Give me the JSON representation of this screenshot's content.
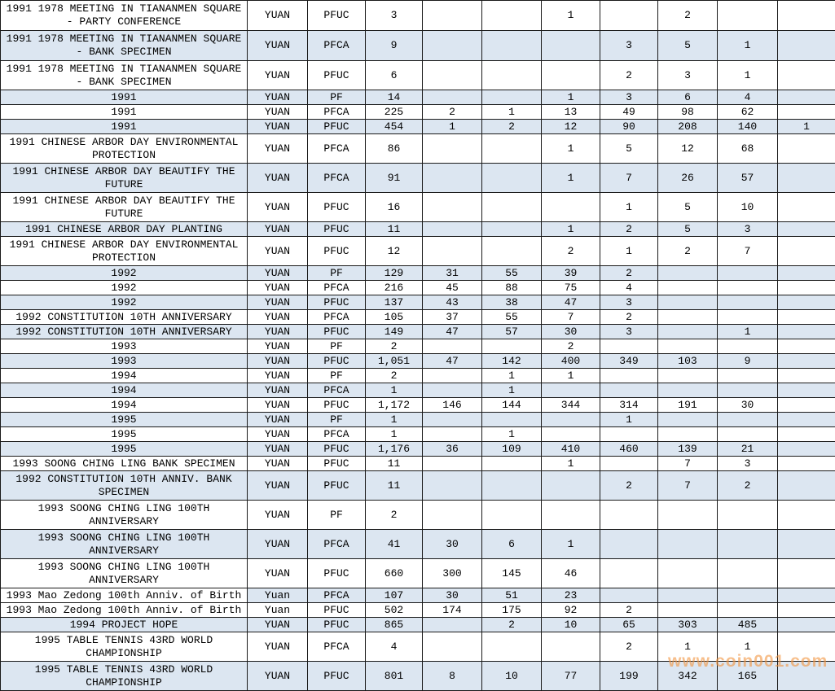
{
  "watermark": {
    "text": "www.coin001.com",
    "color": "rgba(242,148,64,0.60)"
  },
  "colors": {
    "row_blue": "#dce6f1",
    "row_white": "#ffffff",
    "border": "#1a1a1a",
    "text": "#000000",
    "watermark_orange": "#f2a440"
  },
  "table": {
    "column_roles": [
      "description",
      "currency",
      "grade",
      "count-total",
      "count-1",
      "count-2",
      "count-3",
      "count-4",
      "count-5",
      "count-6",
      "count-7"
    ],
    "rows": [
      {
        "bg": "white",
        "tall": true,
        "cells": [
          "1991 1978 MEETING IN TIANANMEN SQUARE - PARTY CONFERENCE",
          "YUAN",
          "PFUC",
          "3",
          "",
          "",
          "1",
          "",
          "2",
          "",
          ""
        ]
      },
      {
        "bg": "blue",
        "tall": true,
        "cells": [
          "1991 1978 MEETING IN TIANANMEN SQUARE - BANK SPECIMEN",
          "YUAN",
          "PFCA",
          "9",
          "",
          "",
          "",
          "3",
          "5",
          "1",
          ""
        ]
      },
      {
        "bg": "white",
        "tall": true,
        "cells": [
          "1991 1978 MEETING IN TIANANMEN SQUARE - BANK SPECIMEN",
          "YUAN",
          "PFUC",
          "6",
          "",
          "",
          "",
          "2",
          "3",
          "1",
          ""
        ]
      },
      {
        "bg": "blue",
        "tall": false,
        "cells": [
          "1991",
          "YUAN",
          "PF",
          "14",
          "",
          "",
          "1",
          "3",
          "6",
          "4",
          ""
        ]
      },
      {
        "bg": "white",
        "tall": false,
        "cells": [
          "1991",
          "YUAN",
          "PFCA",
          "225",
          "2",
          "1",
          "13",
          "49",
          "98",
          "62",
          ""
        ]
      },
      {
        "bg": "blue",
        "tall": false,
        "cells": [
          "1991",
          "YUAN",
          "PFUC",
          "454",
          "1",
          "2",
          "12",
          "90",
          "208",
          "140",
          "1"
        ]
      },
      {
        "bg": "white",
        "tall": true,
        "cells": [
          "1991 CHINESE ARBOR DAY ENVIRONMENTAL PROTECTION",
          "YUAN",
          "PFCA",
          "86",
          "",
          "",
          "1",
          "5",
          "12",
          "68",
          ""
        ]
      },
      {
        "bg": "blue",
        "tall": true,
        "cells": [
          "1991 CHINESE ARBOR DAY BEAUTIFY THE FUTURE",
          "YUAN",
          "PFCA",
          "91",
          "",
          "",
          "1",
          "7",
          "26",
          "57",
          ""
        ]
      },
      {
        "bg": "white",
        "tall": true,
        "cells": [
          "1991 CHINESE ARBOR DAY BEAUTIFY THE FUTURE",
          "YUAN",
          "PFUC",
          "16",
          "",
          "",
          "",
          "1",
          "5",
          "10",
          ""
        ]
      },
      {
        "bg": "blue",
        "tall": false,
        "cells": [
          "1991 CHINESE ARBOR DAY PLANTING",
          "YUAN",
          "PFUC",
          "11",
          "",
          "",
          "1",
          "2",
          "5",
          "3",
          ""
        ]
      },
      {
        "bg": "white",
        "tall": true,
        "cells": [
          "1991 CHINESE ARBOR DAY ENVIRONMENTAL PROTECTION",
          "YUAN",
          "PFUC",
          "12",
          "",
          "",
          "2",
          "1",
          "2",
          "7",
          ""
        ]
      },
      {
        "bg": "blue",
        "tall": false,
        "cells": [
          "1992",
          "YUAN",
          "PF",
          "129",
          "31",
          "55",
          "39",
          "2",
          "",
          "",
          ""
        ]
      },
      {
        "bg": "white",
        "tall": false,
        "cells": [
          "1992",
          "YUAN",
          "PFCA",
          "216",
          "45",
          "88",
          "75",
          "4",
          "",
          "",
          ""
        ]
      },
      {
        "bg": "blue",
        "tall": false,
        "cells": [
          "1992",
          "YUAN",
          "PFUC",
          "137",
          "43",
          "38",
          "47",
          "3",
          "",
          "",
          ""
        ]
      },
      {
        "bg": "white",
        "tall": false,
        "cells": [
          "1992 CONSTITUTION 10TH ANNIVERSARY",
          "YUAN",
          "PFCA",
          "105",
          "37",
          "55",
          "7",
          "2",
          "",
          "",
          ""
        ]
      },
      {
        "bg": "blue",
        "tall": false,
        "cells": [
          "1992 CONSTITUTION 10TH ANNIVERSARY",
          "YUAN",
          "PFUC",
          "149",
          "47",
          "57",
          "30",
          "3",
          "",
          "1",
          ""
        ]
      },
      {
        "bg": "white",
        "tall": false,
        "cells": [
          "1993",
          "YUAN",
          "PF",
          "2",
          "",
          "",
          "2",
          "",
          "",
          "",
          ""
        ]
      },
      {
        "bg": "blue",
        "tall": false,
        "cells": [
          "1993",
          "YUAN",
          "PFUC",
          "1,051",
          "47",
          "142",
          "400",
          "349",
          "103",
          "9",
          ""
        ]
      },
      {
        "bg": "white",
        "tall": false,
        "cells": [
          "1994",
          "YUAN",
          "PF",
          "2",
          "",
          "1",
          "1",
          "",
          "",
          "",
          ""
        ]
      },
      {
        "bg": "blue",
        "tall": false,
        "cells": [
          "1994",
          "YUAN",
          "PFCA",
          "1",
          "",
          "1",
          "",
          "",
          "",
          "",
          ""
        ]
      },
      {
        "bg": "white",
        "tall": false,
        "cells": [
          "1994",
          "YUAN",
          "PFUC",
          "1,172",
          "146",
          "144",
          "344",
          "314",
          "191",
          "30",
          ""
        ]
      },
      {
        "bg": "blue",
        "tall": false,
        "cells": [
          "1995",
          "YUAN",
          "PF",
          "1",
          "",
          "",
          "",
          "1",
          "",
          "",
          ""
        ]
      },
      {
        "bg": "white",
        "tall": false,
        "cells": [
          "1995",
          "YUAN",
          "PFCA",
          "1",
          "",
          "1",
          "",
          "",
          "",
          "",
          ""
        ]
      },
      {
        "bg": "blue",
        "tall": false,
        "cells": [
          "1995",
          "YUAN",
          "PFUC",
          "1,176",
          "36",
          "109",
          "410",
          "460",
          "139",
          "21",
          ""
        ]
      },
      {
        "bg": "white",
        "tall": false,
        "cells": [
          "1993 SOONG CHING LING BANK SPECIMEN",
          "YUAN",
          "PFUC",
          "11",
          "",
          "",
          "1",
          "",
          "7",
          "3",
          ""
        ]
      },
      {
        "bg": "blue",
        "tall": true,
        "cells": [
          "1992 CONSTITUTION 10TH ANNIV. BANK SPECIMEN",
          "YUAN",
          "PFUC",
          "11",
          "",
          "",
          "",
          "2",
          "7",
          "2",
          ""
        ]
      },
      {
        "bg": "white",
        "tall": true,
        "cells": [
          "1993 SOONG CHING LING 100TH ANNIVERSARY",
          "YUAN",
          "PF",
          "2",
          "",
          "",
          "",
          "",
          "",
          "",
          ""
        ]
      },
      {
        "bg": "blue",
        "tall": true,
        "cells": [
          "1993 SOONG CHING LING 100TH ANNIVERSARY",
          "YUAN",
          "PFCA",
          "41",
          "30",
          "6",
          "1",
          "",
          "",
          "",
          ""
        ]
      },
      {
        "bg": "white",
        "tall": true,
        "cells": [
          "1993 SOONG CHING LING 100TH ANNIVERSARY",
          "YUAN",
          "PFUC",
          "660",
          "300",
          "145",
          "46",
          "",
          "",
          "",
          ""
        ]
      },
      {
        "bg": "blue",
        "tall": false,
        "first_cell_bg": "#ffffff",
        "cells": [
          "1993 Mao Zedong 100th Anniv. of Birth",
          "Yuan",
          "PFCA",
          "107",
          "30",
          "51",
          "23",
          "",
          "",
          "",
          ""
        ]
      },
      {
        "bg": "white",
        "tall": false,
        "cells": [
          "1993 Mao Zedong 100th Anniv. of Birth",
          "Yuan",
          "PFUC",
          "502",
          "174",
          "175",
          "92",
          "2",
          "",
          "",
          ""
        ]
      },
      {
        "bg": "blue",
        "tall": false,
        "cells": [
          "1994 PROJECT HOPE",
          "YUAN",
          "PFUC",
          "865",
          "",
          "2",
          "10",
          "65",
          "303",
          "485",
          ""
        ]
      },
      {
        "bg": "white",
        "tall": true,
        "cells": [
          "1995 TABLE TENNIS 43RD WORLD CHAMPIONSHIP",
          "YUAN",
          "PFCA",
          "4",
          "",
          "",
          "",
          "2",
          "1",
          "1",
          ""
        ]
      },
      {
        "bg": "blue",
        "tall": true,
        "cells": [
          "1995 TABLE TENNIS 43RD WORLD CHAMPIONSHIP",
          "YUAN",
          "PFUC",
          "801",
          "8",
          "10",
          "77",
          "199",
          "342",
          "165",
          ""
        ]
      }
    ]
  }
}
